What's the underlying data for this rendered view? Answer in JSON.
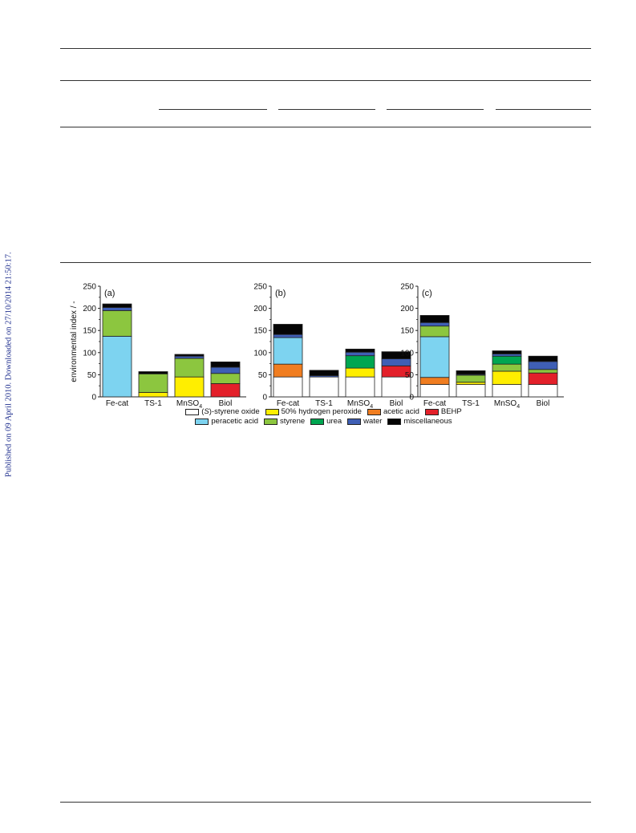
{
  "watermark": "Published on 09 April 2010. Downloaded on 27/10/2014 21:50:17.",
  "legend_rows": [
    [
      "styrene_oxide",
      "h2o2",
      "acetic_acid",
      "behp"
    ],
    [
      "peracetic_acid",
      "styrene",
      "urea",
      "water",
      "misc"
    ]
  ],
  "components": {
    "styrene_oxide": {
      "label": "(S)-styrene oxide",
      "color": "#ffffff"
    },
    "h2o2": {
      "label": "50% hydrogen peroxide",
      "color": "#ffee00"
    },
    "acetic_acid": {
      "label": "acetic acid",
      "color": "#f07d20"
    },
    "behp": {
      "label": "BEHP",
      "color": "#e3202a"
    },
    "peracetic_acid": {
      "label": "peracetic acid",
      "color": "#7dd3f0"
    },
    "styrene": {
      "label": "styrene",
      "color": "#8cc63f"
    },
    "urea": {
      "label": "urea",
      "color": "#00a651"
    },
    "water": {
      "label": "water",
      "color": "#3f5fb5"
    },
    "misc": {
      "label": "miscellaneous",
      "color": "#050505"
    }
  },
  "chart_data": [
    {
      "type": "bar",
      "stacked": true,
      "panel_label": "(a)",
      "ylabel": "environmental index / -",
      "ylim": [
        0,
        250
      ],
      "yticks": [
        0,
        50,
        100,
        150,
        200,
        250
      ],
      "categories": [
        "Fe-cat",
        "TS-1",
        "MnSO4",
        "Biol"
      ],
      "series": [
        {
          "key": "styrene_oxide",
          "values": [
            0,
            0,
            0,
            0
          ]
        },
        {
          "key": "h2o2",
          "values": [
            0,
            10,
            45,
            0
          ]
        },
        {
          "key": "acetic_acid",
          "values": [
            0,
            0,
            0,
            0
          ]
        },
        {
          "key": "behp",
          "values": [
            0,
            0,
            0,
            30
          ]
        },
        {
          "key": "peracetic_acid",
          "values": [
            137,
            0,
            0,
            0
          ]
        },
        {
          "key": "styrene",
          "values": [
            58,
            42,
            42,
            23
          ]
        },
        {
          "key": "urea",
          "values": [
            0,
            0,
            0,
            0
          ]
        },
        {
          "key": "water",
          "values": [
            7,
            0,
            5,
            14
          ]
        },
        {
          "key": "misc",
          "values": [
            8,
            5,
            4,
            12
          ]
        }
      ]
    },
    {
      "type": "bar",
      "stacked": true,
      "panel_label": "(b)",
      "ylabel": "",
      "ylim": [
        0,
        250
      ],
      "yticks": [
        0,
        50,
        100,
        150,
        200,
        250
      ],
      "categories": [
        "Fe-cat",
        "TS-1",
        "MnSO4",
        "Biol"
      ],
      "series": [
        {
          "key": "styrene_oxide",
          "values": [
            45,
            45,
            45,
            45
          ]
        },
        {
          "key": "h2o2",
          "values": [
            0,
            0,
            20,
            0
          ]
        },
        {
          "key": "acetic_acid",
          "values": [
            29,
            0,
            0,
            0
          ]
        },
        {
          "key": "behp",
          "values": [
            0,
            0,
            0,
            25
          ]
        },
        {
          "key": "peracetic_acid",
          "values": [
            60,
            0,
            0,
            0
          ]
        },
        {
          "key": "styrene",
          "values": [
            0,
            0,
            0,
            0
          ]
        },
        {
          "key": "urea",
          "values": [
            0,
            0,
            28,
            0
          ]
        },
        {
          "key": "water",
          "values": [
            7,
            3,
            8,
            16
          ]
        },
        {
          "key": "misc",
          "values": [
            23,
            12,
            7,
            16
          ]
        }
      ]
    },
    {
      "type": "bar",
      "stacked": true,
      "panel_label": "(c)",
      "ylabel": "",
      "ylim": [
        0,
        250
      ],
      "yticks": [
        0,
        50,
        100,
        150,
        200,
        250
      ],
      "categories": [
        "Fe-cat",
        "TS-1",
        "MnSO4",
        "Biol"
      ],
      "series": [
        {
          "key": "styrene_oxide",
          "values": [
            28,
            28,
            28,
            28
          ]
        },
        {
          "key": "h2o2",
          "values": [
            0,
            5,
            30,
            0
          ]
        },
        {
          "key": "acetic_acid",
          "values": [
            16,
            0,
            0,
            0
          ]
        },
        {
          "key": "behp",
          "values": [
            0,
            0,
            0,
            26
          ]
        },
        {
          "key": "peracetic_acid",
          "values": [
            92,
            0,
            0,
            0
          ]
        },
        {
          "key": "styrene",
          "values": [
            24,
            16,
            16,
            8
          ]
        },
        {
          "key": "urea",
          "values": [
            0,
            0,
            18,
            0
          ]
        },
        {
          "key": "water",
          "values": [
            8,
            2,
            5,
            18
          ]
        },
        {
          "key": "misc",
          "values": [
            16,
            8,
            7,
            12
          ]
        }
      ]
    }
  ]
}
